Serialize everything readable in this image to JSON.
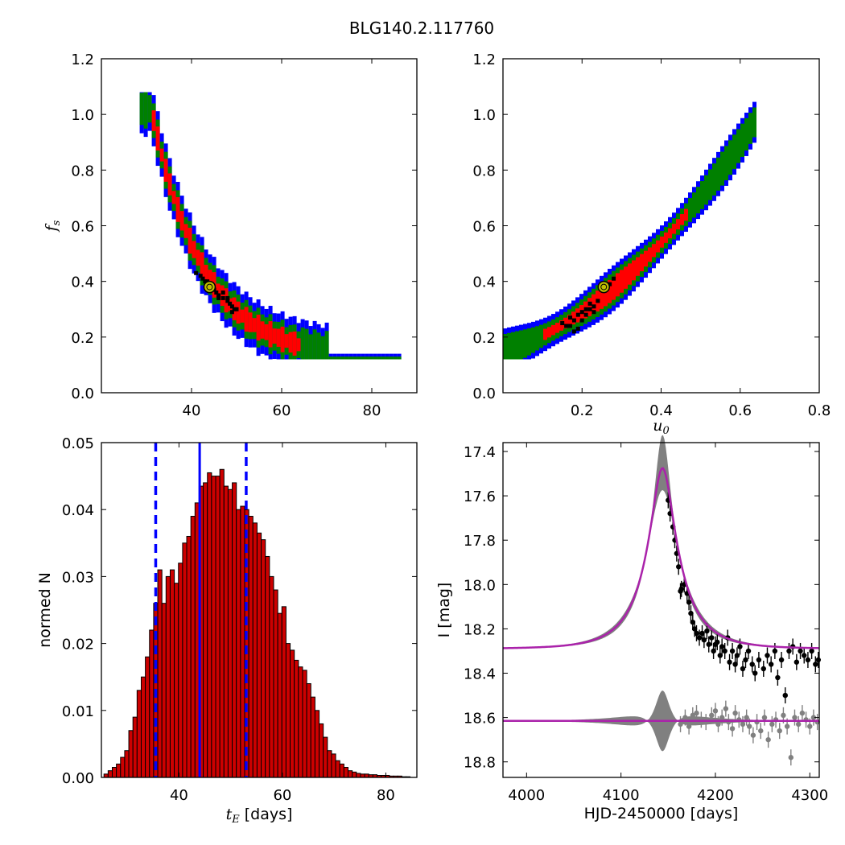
{
  "figure": {
    "title": "BLG140.2.117760"
  },
  "colors": {
    "blue_region": "#0000ff",
    "green_region": "#008000",
    "red_region": "#ff0000",
    "samples": "#000000",
    "best_fit_marker": "#bfbf00",
    "hist_bar": "#cc0000",
    "vline": "#0000ff",
    "model": "#aa22aa",
    "band": "#808080",
    "residual": "#808080"
  },
  "chart_data": [
    {
      "id": "tE_fs",
      "type": "heatmap",
      "title": "",
      "xlabel": "",
      "ylabel": "f_s",
      "xlim": [
        20,
        90
      ],
      "ylim": [
        0.0,
        1.2
      ],
      "xticks": [
        "40",
        "60",
        "80"
      ],
      "yticks": [
        "0.0",
        "0.2",
        "0.4",
        "0.6",
        "0.8",
        "1.0",
        "1.2"
      ],
      "confidence_regions": {
        "curve": "f_s ≈ 0.12 + 0.95·exp(-(t_E-30)/11.5)",
        "x_range": [
          28.5,
          86
        ],
        "blue_halfwidth": 0.09,
        "green_halfwidth": 0.06,
        "red_halfwidth": 0.035,
        "red_x_range": [
          30.5,
          64
        ]
      },
      "samples": [
        [
          41,
          0.43
        ],
        [
          42,
          0.42
        ],
        [
          43,
          0.4
        ],
        [
          44,
          0.38
        ],
        [
          45,
          0.37
        ],
        [
          45.5,
          0.36
        ],
        [
          46,
          0.35
        ],
        [
          47,
          0.34
        ],
        [
          48,
          0.33
        ],
        [
          48.5,
          0.32
        ],
        [
          49,
          0.31
        ],
        [
          49.5,
          0.3
        ],
        [
          50,
          0.3
        ],
        [
          47,
          0.36
        ],
        [
          46,
          0.34
        ],
        [
          44.5,
          0.39
        ],
        [
          43.5,
          0.4
        ],
        [
          42.5,
          0.41
        ],
        [
          48,
          0.34
        ],
        [
          49,
          0.29
        ]
      ],
      "best_fit": {
        "x": 44,
        "y": 0.38
      },
      "grid": false
    },
    {
      "id": "u0_fs",
      "type": "heatmap",
      "title": "",
      "xlabel": "u_0",
      "ylabel": "",
      "xlim": [
        0.0,
        0.8
      ],
      "ylim": [
        0.0,
        1.2
      ],
      "xticks": [
        "0.2",
        "0.4",
        "0.6",
        "0.8"
      ],
      "yticks": [
        "0.0",
        "0.2",
        "0.4",
        "0.6",
        "0.8",
        "1.0",
        "1.2"
      ],
      "confidence_regions": {
        "curve": "f_s ≈ 0.15 + 1.35·u_0² + 0.45·u_0 (approx.)",
        "u_range": [
          0.0,
          0.64
        ],
        "blue_halfwidth": 0.07,
        "green_halfwidth": 0.05,
        "red_halfwidth": 0.03,
        "red_u_range": [
          0.1,
          0.46
        ]
      },
      "samples": [
        [
          0.15,
          0.25
        ],
        [
          0.16,
          0.24
        ],
        [
          0.17,
          0.27
        ],
        [
          0.18,
          0.26
        ],
        [
          0.19,
          0.28
        ],
        [
          0.2,
          0.29
        ],
        [
          0.21,
          0.3
        ],
        [
          0.22,
          0.3
        ],
        [
          0.22,
          0.32
        ],
        [
          0.23,
          0.31
        ],
        [
          0.19,
          0.23
        ],
        [
          0.2,
          0.26
        ],
        [
          0.17,
          0.24
        ],
        [
          0.21,
          0.28
        ],
        [
          0.24,
          0.33
        ],
        [
          0.25,
          0.38
        ],
        [
          0.27,
          0.39
        ],
        [
          0.28,
          0.41
        ],
        [
          0.18,
          0.22
        ],
        [
          0.23,
          0.29
        ]
      ],
      "best_fit": {
        "x": 0.255,
        "y": 0.38
      },
      "grid": false
    },
    {
      "id": "tE_hist",
      "type": "bar",
      "title": "",
      "xlabel": "t_E [days]",
      "ylabel": "normed N",
      "xlim": [
        25,
        86
      ],
      "ylim": [
        0.0,
        0.05
      ],
      "xticks": [
        "40",
        "60",
        "80"
      ],
      "yticks": [
        "0.00",
        "0.01",
        "0.02",
        "0.03",
        "0.04",
        "0.05"
      ],
      "bin_start": 25.5,
      "bin_width": 0.8,
      "values": [
        0.0005,
        0.001,
        0.0015,
        0.002,
        0.003,
        0.004,
        0.007,
        0.009,
        0.013,
        0.015,
        0.018,
        0.022,
        0.026,
        0.031,
        0.026,
        0.03,
        0.031,
        0.029,
        0.032,
        0.035,
        0.036,
        0.039,
        0.041,
        0.0435,
        0.044,
        0.0455,
        0.045,
        0.045,
        0.046,
        0.0435,
        0.043,
        0.044,
        0.04,
        0.0405,
        0.04,
        0.039,
        0.038,
        0.0365,
        0.0355,
        0.033,
        0.03,
        0.028,
        0.0245,
        0.0255,
        0.02,
        0.019,
        0.0175,
        0.0165,
        0.016,
        0.014,
        0.012,
        0.01,
        0.008,
        0.006,
        0.004,
        0.0035,
        0.0025,
        0.002,
        0.0015,
        0.001,
        0.0008,
        0.0006,
        0.0005,
        0.0005,
        0.0004,
        0.0004,
        0.0003,
        0.0003,
        0.0003,
        0.0002,
        0.0002,
        0.0002,
        0.0001,
        0.0001
      ],
      "vlines": {
        "median": 44,
        "lower": 35.5,
        "upper": 53
      }
    },
    {
      "id": "lightcurve",
      "type": "line",
      "title": "",
      "xlabel": "HJD-2450000 [days]",
      "ylabel": "I [mag]",
      "xlim": [
        3975,
        4310
      ],
      "ylim": [
        18.87,
        17.36
      ],
      "xticks": [
        "4000",
        "4100",
        "4200",
        "4300"
      ],
      "yticks": [
        "17.4",
        "17.6",
        "17.8",
        "18.0",
        "18.2",
        "18.4",
        "18.6",
        "18.8"
      ],
      "model": {
        "baseline": 18.29,
        "peak_time": 4144,
        "peak_mag": 17.47,
        "tE": 44,
        "u0": 0.26,
        "fs": 0.38,
        "residual_offset": 18.615
      },
      "data_points": [
        [
          4150,
          17.62
        ],
        [
          4152,
          17.68
        ],
        [
          4155,
          17.74
        ],
        [
          4157,
          17.8
        ],
        [
          4159,
          17.86
        ],
        [
          4161,
          17.92
        ],
        [
          4164,
          18.02
        ],
        [
          4163,
          18.03
        ],
        [
          4167,
          18.0
        ],
        [
          4170,
          18.04
        ],
        [
          4172,
          18.08
        ],
        [
          4174,
          18.13
        ],
        [
          4176,
          18.17
        ],
        [
          4178,
          18.2
        ],
        [
          4180,
          18.22
        ],
        [
          4183,
          18.24
        ],
        [
          4186,
          18.22
        ],
        [
          4188,
          18.25
        ],
        [
          4191,
          18.21
        ],
        [
          4193,
          18.27
        ],
        [
          4196,
          18.24
        ],
        [
          4198,
          18.3
        ],
        [
          4200,
          18.27
        ],
        [
          4202,
          18.26
        ],
        [
          4205,
          18.32
        ],
        [
          4207,
          18.28
        ],
        [
          4210,
          18.3
        ],
        [
          4213,
          18.24
        ],
        [
          4215,
          18.35
        ],
        [
          4218,
          18.3
        ],
        [
          4221,
          18.36
        ],
        [
          4223,
          18.32
        ],
        [
          4226,
          18.28
        ],
        [
          4229,
          18.38
        ],
        [
          4232,
          18.34
        ],
        [
          4235,
          18.3
        ],
        [
          4239,
          18.36
        ],
        [
          4242,
          18.4
        ],
        [
          4246,
          18.34
        ],
        [
          4251,
          18.38
        ],
        [
          4255,
          18.32
        ],
        [
          4259,
          18.36
        ],
        [
          4263,
          18.3
        ],
        [
          4266,
          18.42
        ],
        [
          4270,
          18.34
        ],
        [
          4274,
          18.5
        ],
        [
          4278,
          18.3
        ],
        [
          4282,
          18.28
        ],
        [
          4286,
          18.35
        ],
        [
          4290,
          18.3
        ],
        [
          4294,
          18.32
        ],
        [
          4298,
          18.34
        ],
        [
          4302,
          18.3
        ],
        [
          4306,
          18.36
        ],
        [
          4309,
          18.34
        ]
      ],
      "residual_points": [
        [
          4180,
          18.58
        ],
        [
          4185,
          18.61
        ],
        [
          4190,
          18.62
        ],
        [
          4196,
          18.59
        ],
        [
          4200,
          18.57
        ],
        [
          4203,
          18.63
        ],
        [
          4207,
          18.6
        ],
        [
          4211,
          18.56
        ],
        [
          4214,
          18.62
        ],
        [
          4218,
          18.65
        ],
        [
          4221,
          18.58
        ],
        [
          4225,
          18.61
        ],
        [
          4229,
          18.63
        ],
        [
          4233,
          18.6
        ],
        [
          4236,
          18.64
        ],
        [
          4240,
          18.68
        ],
        [
          4244,
          18.62
        ],
        [
          4248,
          18.66
        ],
        [
          4252,
          18.6
        ],
        [
          4256,
          18.7
        ],
        [
          4260,
          18.63
        ],
        [
          4264,
          18.61
        ],
        [
          4268,
          18.66
        ],
        [
          4272,
          18.59
        ],
        [
          4276,
          18.64
        ],
        [
          4280,
          18.78
        ],
        [
          4284,
          18.6
        ],
        [
          4288,
          18.63
        ],
        [
          4292,
          18.58
        ],
        [
          4296,
          18.61
        ],
        [
          4300,
          18.64
        ],
        [
          4304,
          18.6
        ],
        [
          4308,
          18.62
        ],
        [
          4163,
          18.63
        ],
        [
          4168,
          18.6
        ],
        [
          4172,
          18.64
        ],
        [
          4176,
          18.59
        ]
      ]
    }
  ]
}
